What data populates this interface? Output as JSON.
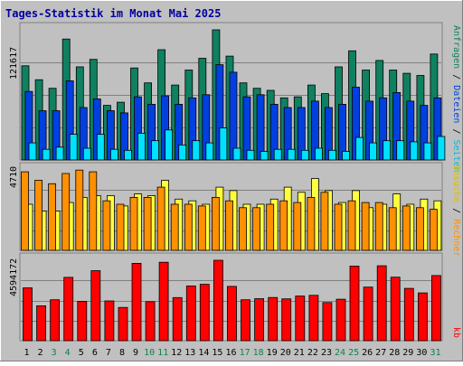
{
  "title": "Tages-Statistik im Monat Mai 2025",
  "colors": {
    "background": "#c0c0c0",
    "title": "#0000a0",
    "anfragen": "#0f8060",
    "dateien": "#0040e0",
    "seiten": "#00e0ff",
    "besuche": "#ffff40",
    "rechner": "#ff9000",
    "kb": "#ff0000",
    "weekday_label": "#000000",
    "weekend_label": "#108050"
  },
  "chart_data": [
    {
      "type": "bar",
      "panel": "top",
      "categories": [
        "1",
        "2",
        "3",
        "4",
        "5",
        "6",
        "7",
        "8",
        "9",
        "10",
        "11",
        "12",
        "13",
        "14",
        "15",
        "16",
        "17",
        "18",
        "19",
        "20",
        "21",
        "22",
        "23",
        "24",
        "25",
        "26",
        "27",
        "28",
        "29",
        "30",
        "31"
      ],
      "weekend_days": [
        "3",
        "4",
        "10",
        "11",
        "17",
        "18",
        "24",
        "25",
        "31"
      ],
      "ylim": [
        0,
        121617
      ],
      "tick_label": "121617",
      "series": [
        {
          "name": "Anfragen",
          "values": [
            88000,
            75000,
            67000,
            113000,
            87000,
            94000,
            51000,
            54000,
            86000,
            72000,
            103000,
            70000,
            84000,
            95000,
            121617,
            97000,
            72000,
            67000,
            65000,
            58000,
            59000,
            70000,
            62000,
            87000,
            102000,
            84000,
            93000,
            84000,
            81000,
            79000,
            99000
          ]
        },
        {
          "name": "Dateien",
          "values": [
            64000,
            46000,
            46000,
            74000,
            49000,
            57000,
            46000,
            44000,
            59000,
            52000,
            60000,
            52000,
            58000,
            61000,
            89000,
            82000,
            59000,
            61000,
            52000,
            49000,
            49000,
            55000,
            49000,
            52000,
            68000,
            55000,
            58000,
            63000,
            55000,
            51000,
            58000
          ]
        },
        {
          "name": "Seiten",
          "values": [
            16000,
            10000,
            12000,
            24000,
            11000,
            24000,
            10000,
            9000,
            25000,
            18000,
            28000,
            14000,
            18000,
            16000,
            30000,
            11000,
            9000,
            8000,
            10000,
            10000,
            9000,
            11000,
            9000,
            8000,
            21000,
            16000,
            18000,
            18000,
            17000,
            16000,
            22000
          ]
        }
      ]
    },
    {
      "type": "bar",
      "panel": "middle",
      "categories": [
        "1",
        "2",
        "3",
        "4",
        "5",
        "6",
        "7",
        "8",
        "9",
        "10",
        "11",
        "12",
        "13",
        "14",
        "15",
        "16",
        "17",
        "18",
        "19",
        "20",
        "21",
        "22",
        "23",
        "24",
        "25",
        "26",
        "27",
        "28",
        "29",
        "30",
        "31"
      ],
      "ylim": [
        0,
        4710
      ],
      "tick_label": "4710",
      "series": [
        {
          "name": "Besuche",
          "values": [
            2700,
            2300,
            2300,
            2800,
            3100,
            3200,
            3200,
            2600,
            3300,
            3200,
            4100,
            3000,
            2900,
            2700,
            3700,
            3500,
            2700,
            2700,
            3000,
            3700,
            3400,
            4200,
            3500,
            2800,
            3500,
            2500,
            2700,
            3300,
            2700,
            3000,
            2900
          ]
        },
        {
          "name": "Rechner",
          "values": [
            4600,
            4100,
            3900,
            4500,
            4700,
            4600,
            2900,
            2700,
            3100,
            3100,
            3700,
            2700,
            2700,
            2600,
            3100,
            2900,
            2500,
            2500,
            2700,
            2900,
            2800,
            3100,
            3400,
            2700,
            2900,
            2800,
            2800,
            2500,
            2600,
            2500,
            2400
          ]
        }
      ]
    },
    {
      "type": "bar",
      "panel": "bottom",
      "categories": [
        "1",
        "2",
        "3",
        "4",
        "5",
        "6",
        "7",
        "8",
        "9",
        "10",
        "11",
        "12",
        "13",
        "14",
        "15",
        "16",
        "17",
        "18",
        "19",
        "20",
        "21",
        "22",
        "23",
        "24",
        "25",
        "26",
        "27",
        "28",
        "29",
        "30",
        "31"
      ],
      "ylim": [
        0,
        4594172
      ],
      "tick_label": "4594172",
      "series": [
        {
          "name": "kb",
          "values": [
            3020000,
            1990000,
            2340000,
            3620000,
            2250000,
            4000000,
            2270000,
            1900000,
            4420000,
            2230000,
            4480000,
            2460000,
            3130000,
            3220000,
            4594172,
            3100000,
            2340000,
            2400000,
            2470000,
            2390000,
            2550000,
            2590000,
            2180000,
            2370000,
            4260000,
            3060000,
            4280000,
            3630000,
            2990000,
            2730000,
            3720000
          ]
        }
      ]
    }
  ],
  "right_labels": {
    "top": [
      "Anfragen",
      "/",
      "Dateien",
      "/",
      "Seiten"
    ],
    "middle": [
      "Besuche",
      "/",
      "Rechner"
    ],
    "bottom": [
      "kb"
    ]
  }
}
